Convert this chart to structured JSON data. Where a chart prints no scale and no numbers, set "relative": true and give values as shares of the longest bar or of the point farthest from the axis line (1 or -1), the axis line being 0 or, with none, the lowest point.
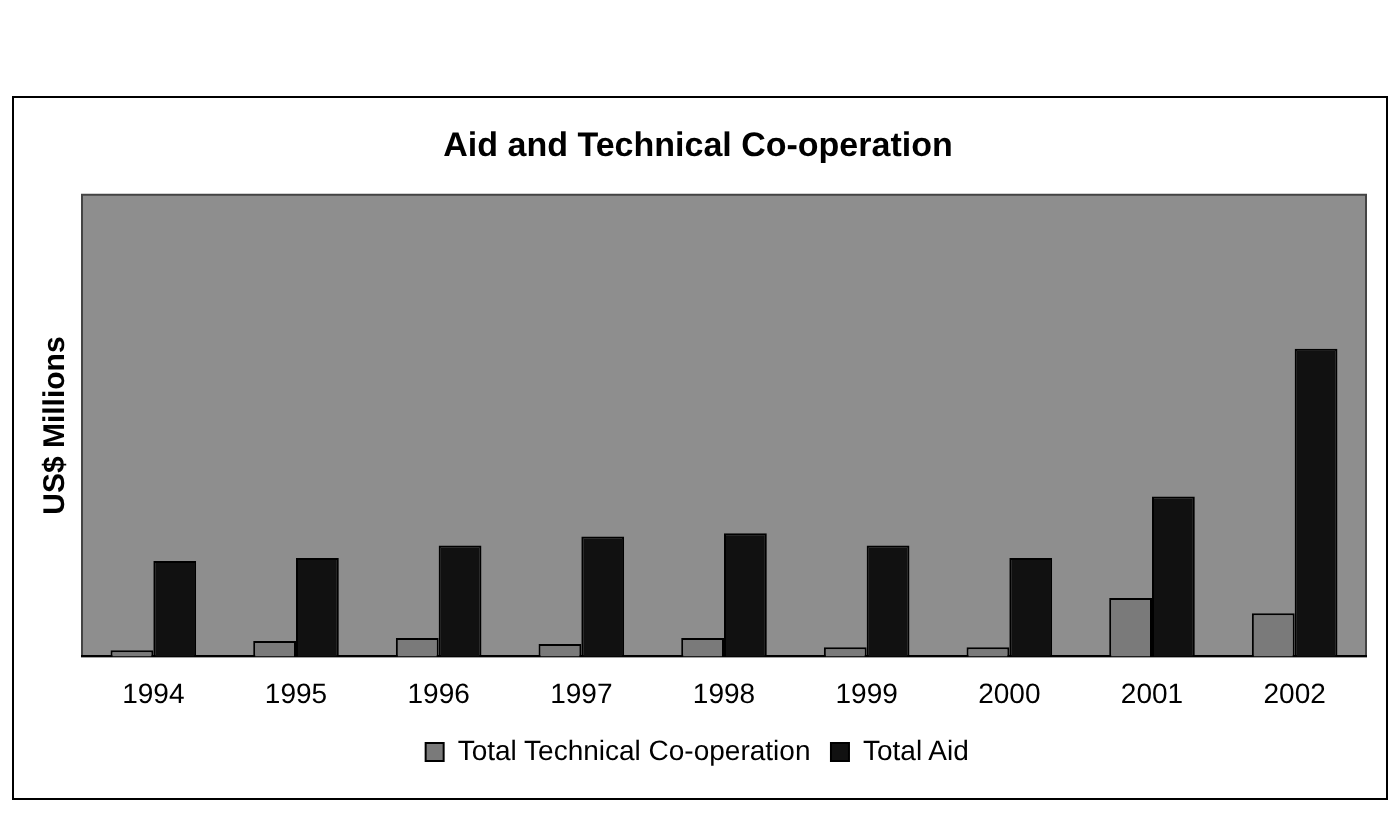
{
  "chart_data": {
    "type": "bar",
    "title": "Aid and Technical Co-operation",
    "ylabel": "US$ Millions",
    "relative": true,
    "legend": "bottom",
    "categories": [
      "1994",
      "1995",
      "1996",
      "1997",
      "1998",
      "1999",
      "2000",
      "2001",
      "2002"
    ],
    "series": [
      {
        "name": "Total Technical Co-operation",
        "color": "#7a7a7a",
        "values": [
          0.02,
          0.05,
          0.06,
          0.04,
          0.06,
          0.03,
          0.03,
          0.19,
          0.14
        ]
      },
      {
        "name": "Total Aid",
        "color": "#111111",
        "values": [
          0.31,
          0.32,
          0.36,
          0.39,
          0.4,
          0.36,
          0.32,
          0.52,
          1
        ]
      }
    ]
  }
}
